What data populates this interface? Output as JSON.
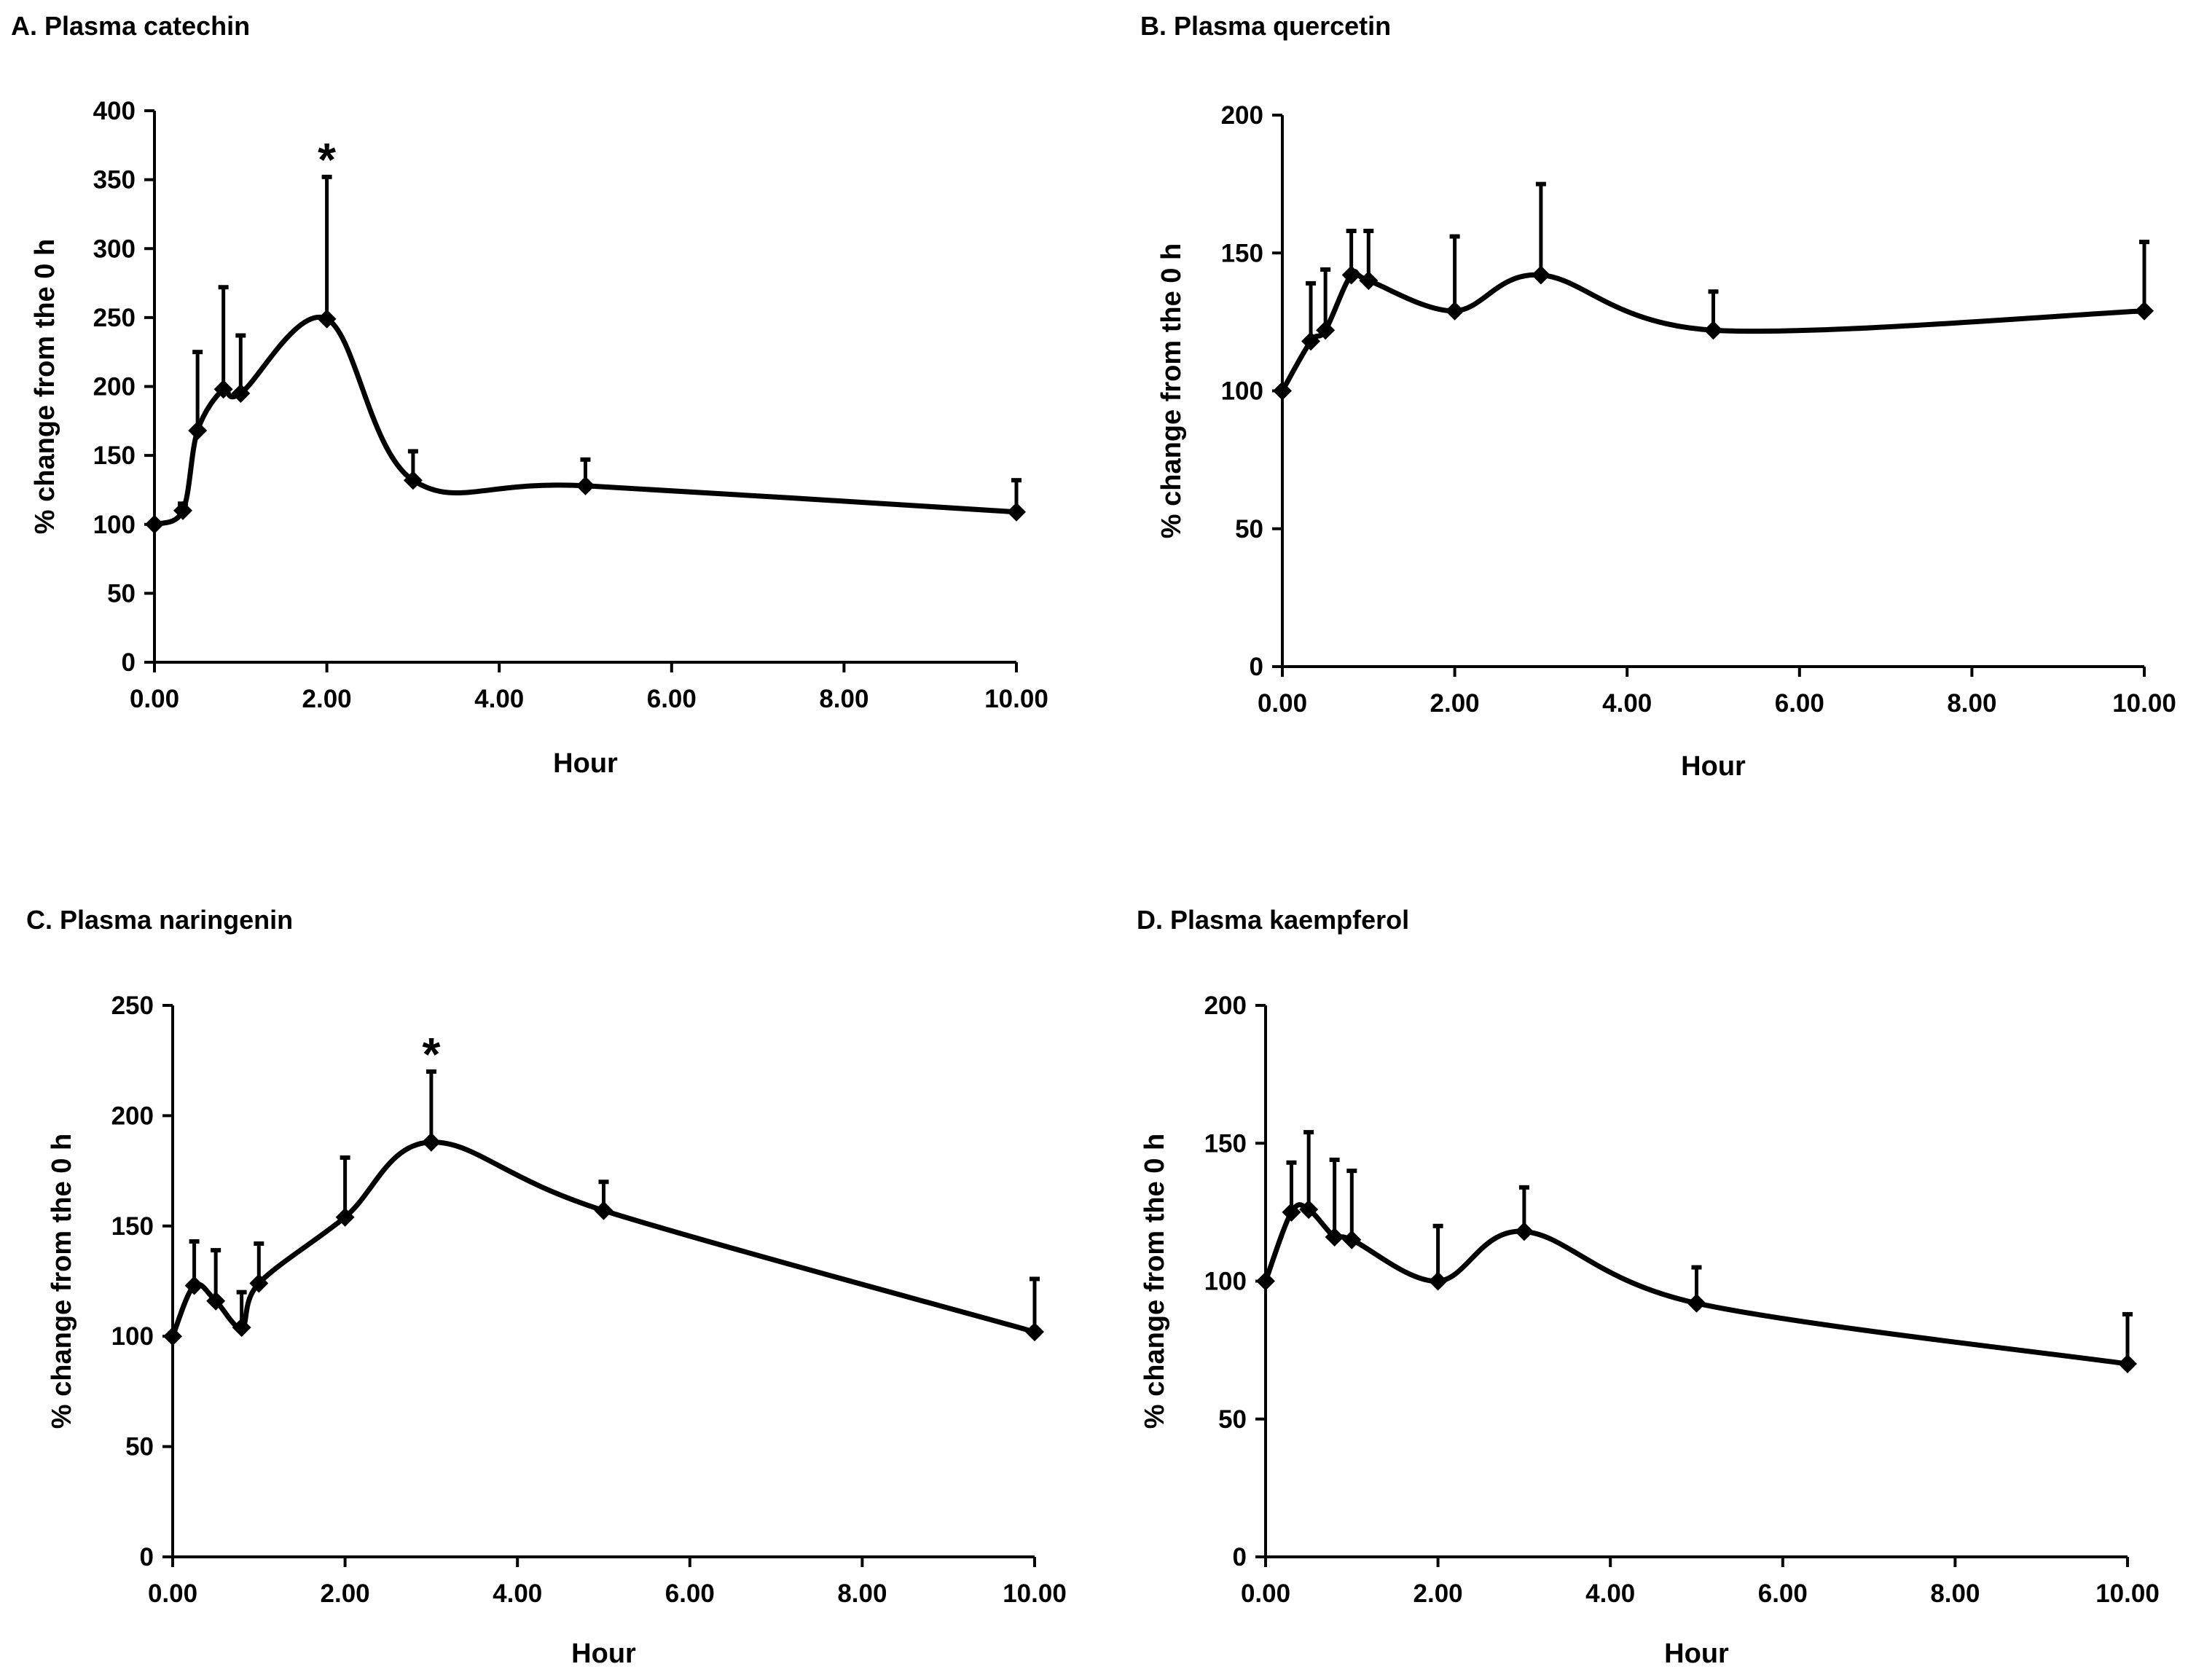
{
  "chart_data": [
    {
      "type": "line",
      "title": "A. Plasma catechin",
      "xlabel": "Hour",
      "ylabel": "% change from the 0 h",
      "xlim": [
        0,
        10
      ],
      "ylim": [
        0,
        400
      ],
      "xticks": [
        0,
        2,
        4,
        6,
        8,
        10
      ],
      "xtick_labels": [
        "0.00",
        "2.00",
        "4.00",
        "6.00",
        "8.00",
        "10.00"
      ],
      "yticks": [
        0,
        50,
        100,
        150,
        200,
        250,
        300,
        350,
        400
      ],
      "ytick_labels": [
        "0",
        "50",
        "100",
        "150",
        "200",
        "250",
        "300",
        "350",
        "400"
      ],
      "grid": false,
      "smooth": true,
      "x": [
        0,
        0.33,
        0.5,
        0.8,
        1,
        2,
        3,
        5,
        10
      ],
      "y": [
        100,
        110,
        168,
        198,
        195,
        249,
        132,
        128,
        109
      ],
      "error_upper": [
        100,
        115,
        225,
        272,
        237,
        352,
        153,
        147,
        132
      ],
      "annotations": [
        {
          "text": "*",
          "x": 2
        }
      ]
    },
    {
      "type": "line",
      "title": "B. Plasma quercetin",
      "xlabel": "Hour",
      "ylabel": "% change from the 0 h",
      "xlim": [
        0,
        10
      ],
      "ylim": [
        0,
        200
      ],
      "xticks": [
        0,
        2,
        4,
        6,
        8,
        10
      ],
      "xtick_labels": [
        "0.00",
        "2.00",
        "4.00",
        "6.00",
        "8.00",
        "10.00"
      ],
      "yticks": [
        0,
        50,
        100,
        150,
        200
      ],
      "ytick_labels": [
        "0",
        "50",
        "100",
        "150",
        "200"
      ],
      "grid": false,
      "smooth": true,
      "x": [
        0,
        0.33,
        0.5,
        0.8,
        1,
        2,
        3,
        5,
        10
      ],
      "y": [
        100,
        118,
        122,
        142,
        140,
        129,
        142,
        122,
        129
      ],
      "error_upper": [
        100,
        139,
        144,
        158,
        158,
        156,
        175,
        136,
        154
      ],
      "annotations": []
    },
    {
      "type": "line",
      "title": "C. Plasma naringenin",
      "xlabel": "Hour",
      "ylabel": "% change from the 0 h",
      "xlim": [
        0,
        10
      ],
      "ylim": [
        0,
        250
      ],
      "xticks": [
        0,
        2,
        4,
        6,
        8,
        10
      ],
      "xtick_labels": [
        "0.00",
        "2.00",
        "4.00",
        "6.00",
        "8.00",
        "10.00"
      ],
      "yticks": [
        0,
        50,
        100,
        150,
        200,
        250
      ],
      "ytick_labels": [
        "0",
        "50",
        "100",
        "150",
        "200",
        "250"
      ],
      "grid": false,
      "smooth": true,
      "x": [
        0,
        0.25,
        0.5,
        0.8,
        1,
        2,
        3,
        5,
        10
      ],
      "y": [
        100,
        123,
        116,
        104,
        124,
        154,
        188,
        157,
        102
      ],
      "error_upper": [
        100,
        143,
        139,
        120,
        142,
        181,
        220,
        170,
        126
      ],
      "annotations": [
        {
          "text": "*",
          "x": 3
        }
      ]
    },
    {
      "type": "line",
      "title": "D. Plasma kaempferol",
      "xlabel": "Hour",
      "ylabel": "% change from the 0 h",
      "xlim": [
        0,
        10
      ],
      "ylim": [
        0,
        200
      ],
      "xticks": [
        0,
        2,
        4,
        6,
        8,
        10
      ],
      "xtick_labels": [
        "0.00",
        "2.00",
        "4.00",
        "6.00",
        "8.00",
        "10.00"
      ],
      "yticks": [
        0,
        50,
        100,
        150,
        200
      ],
      "ytick_labels": [
        "0",
        "50",
        "100",
        "150",
        "200"
      ],
      "grid": false,
      "smooth": true,
      "x": [
        0,
        0.3,
        0.5,
        0.8,
        1,
        2,
        3,
        5,
        10
      ],
      "y": [
        100,
        125,
        126,
        116,
        115,
        100,
        118,
        92,
        70
      ],
      "error_upper": [
        100,
        143,
        154,
        144,
        140,
        120,
        134,
        105,
        88
      ],
      "annotations": []
    }
  ]
}
